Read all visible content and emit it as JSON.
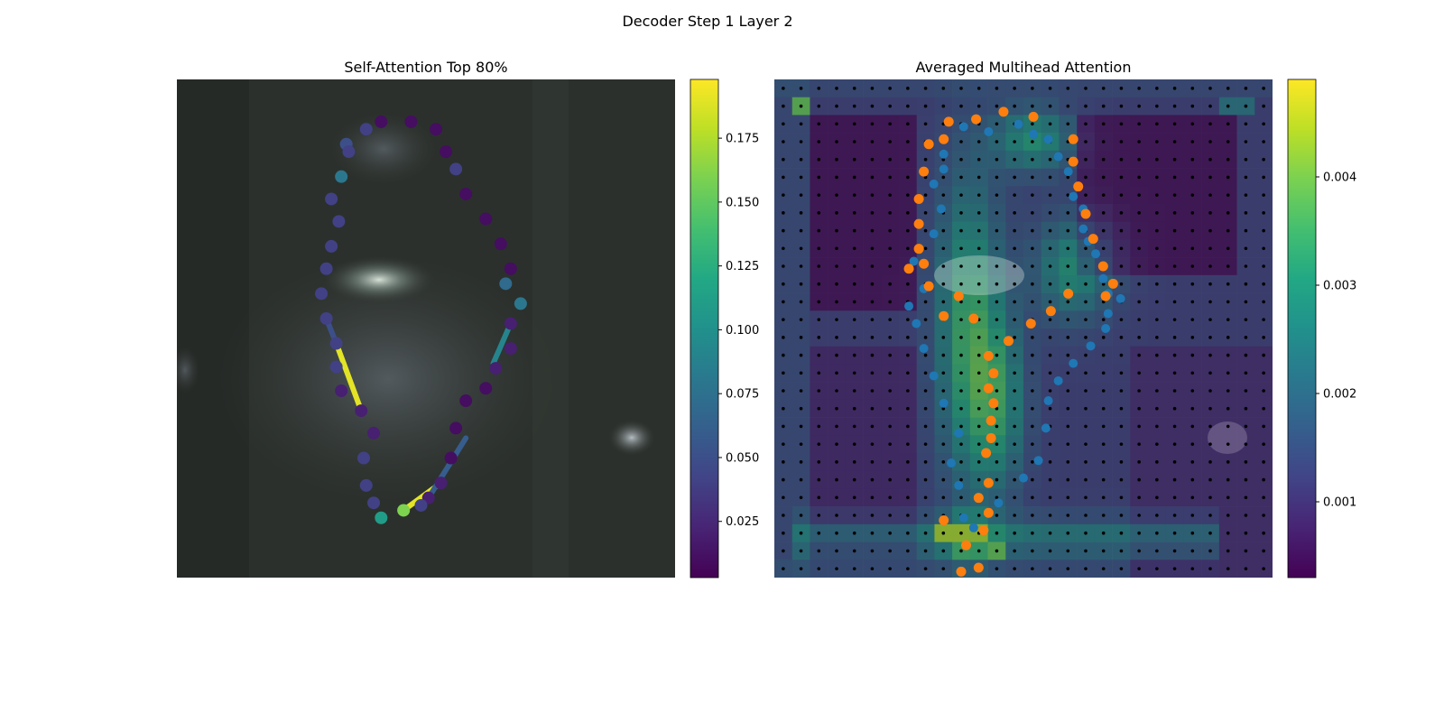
{
  "figure": {
    "title": "Decoder Step 1 Layer 2"
  },
  "chart_data": [
    {
      "type": "scatter",
      "title": "Self-Attention Top 80%",
      "description_of_marks": "contour points colored by attention weight, with highlighted attention links",
      "colormap": "viridis",
      "colorbar": {
        "ticks": [
          0.025,
          0.05,
          0.075,
          0.1,
          0.125,
          0.15,
          0.175
        ],
        "tick_labels": [
          "0.025",
          "0.050",
          "0.075",
          "0.100",
          "0.125",
          "0.150",
          "0.175"
        ],
        "range": [
          0.003,
          0.198
        ]
      },
      "points": [
        [
          0.41,
          0.085,
          0.01
        ],
        [
          0.47,
          0.085,
          0.01
        ],
        [
          0.38,
          0.1,
          0.04
        ],
        [
          0.34,
          0.13,
          0.05
        ],
        [
          0.52,
          0.1,
          0.01
        ],
        [
          0.54,
          0.145,
          0.01
        ],
        [
          0.56,
          0.18,
          0.04
        ],
        [
          0.58,
          0.23,
          0.01
        ],
        [
          0.62,
          0.28,
          0.01
        ],
        [
          0.65,
          0.33,
          0.01
        ],
        [
          0.67,
          0.38,
          0.01
        ],
        [
          0.66,
          0.41,
          0.07
        ],
        [
          0.69,
          0.45,
          0.08
        ],
        [
          0.67,
          0.49,
          0.02
        ],
        [
          0.67,
          0.54,
          0.02
        ],
        [
          0.64,
          0.58,
          0.02
        ],
        [
          0.62,
          0.62,
          0.01
        ],
        [
          0.58,
          0.645,
          0.01
        ],
        [
          0.56,
          0.7,
          0.01
        ],
        [
          0.55,
          0.76,
          0.01
        ],
        [
          0.53,
          0.81,
          0.02
        ],
        [
          0.505,
          0.84,
          0.02
        ],
        [
          0.49,
          0.855,
          0.04
        ],
        [
          0.455,
          0.865,
          0.16
        ],
        [
          0.41,
          0.88,
          0.11
        ],
        [
          0.395,
          0.85,
          0.04
        ],
        [
          0.38,
          0.815,
          0.04
        ],
        [
          0.375,
          0.76,
          0.04
        ],
        [
          0.395,
          0.71,
          0.02
        ],
        [
          0.37,
          0.665,
          0.02
        ],
        [
          0.33,
          0.625,
          0.02
        ],
        [
          0.32,
          0.577,
          0.04
        ],
        [
          0.32,
          0.53,
          0.04
        ],
        [
          0.3,
          0.48,
          0.04
        ],
        [
          0.29,
          0.43,
          0.04
        ],
        [
          0.3,
          0.38,
          0.04
        ],
        [
          0.31,
          0.335,
          0.04
        ],
        [
          0.325,
          0.285,
          0.04
        ],
        [
          0.31,
          0.24,
          0.04
        ],
        [
          0.33,
          0.195,
          0.08
        ],
        [
          0.345,
          0.145,
          0.04
        ]
      ],
      "links": [
        [
          [
            0.32,
            0.53
          ],
          [
            0.37,
            0.665
          ],
          0.19
        ],
        [
          [
            0.455,
            0.865
          ],
          [
            0.53,
            0.81
          ],
          0.19
        ],
        [
          [
            0.67,
            0.49
          ],
          [
            0.635,
            0.57
          ],
          0.09
        ],
        [
          [
            0.505,
            0.84
          ],
          [
            0.58,
            0.72
          ],
          0.06
        ],
        [
          [
            0.3,
            0.48
          ],
          [
            0.32,
            0.53
          ],
          0.05
        ]
      ],
      "link_legend": ""
    },
    {
      "type": "heatmap",
      "title": "Averaged Multihead Attention",
      "colormap": "viridis",
      "colorbar": {
        "ticks": [
          0.001,
          0.002,
          0.003,
          0.004
        ],
        "tick_labels": [
          "0.001",
          "0.002",
          "0.003",
          "0.004"
        ],
        "range": [
          0.0003,
          0.0049
        ]
      },
      "grid": {
        "rows": 28,
        "cols": 28
      },
      "orange_points": [
        [
          0.405,
          0.08
        ],
        [
          0.46,
          0.065
        ],
        [
          0.52,
          0.075
        ],
        [
          0.35,
          0.085
        ],
        [
          0.31,
          0.13
        ],
        [
          0.3,
          0.185
        ],
        [
          0.29,
          0.24
        ],
        [
          0.29,
          0.29
        ],
        [
          0.34,
          0.12
        ],
        [
          0.6,
          0.12
        ],
        [
          0.6,
          0.165
        ],
        [
          0.61,
          0.215
        ],
        [
          0.625,
          0.27
        ],
        [
          0.64,
          0.32
        ],
        [
          0.66,
          0.375
        ],
        [
          0.68,
          0.41
        ],
        [
          0.665,
          0.435
        ],
        [
          0.59,
          0.43
        ],
        [
          0.555,
          0.465
        ],
        [
          0.515,
          0.49
        ],
        [
          0.47,
          0.525
        ],
        [
          0.43,
          0.555
        ],
        [
          0.4,
          0.48
        ],
        [
          0.37,
          0.435
        ],
        [
          0.31,
          0.415
        ],
        [
          0.3,
          0.37
        ],
        [
          0.29,
          0.34
        ],
        [
          0.27,
          0.38
        ],
        [
          0.34,
          0.475
        ],
        [
          0.44,
          0.59
        ],
        [
          0.43,
          0.62
        ],
        [
          0.44,
          0.65
        ],
        [
          0.435,
          0.685
        ],
        [
          0.435,
          0.72
        ],
        [
          0.425,
          0.75
        ],
        [
          0.43,
          0.81
        ],
        [
          0.41,
          0.84
        ],
        [
          0.43,
          0.87
        ],
        [
          0.42,
          0.905
        ],
        [
          0.385,
          0.935
        ],
        [
          0.41,
          0.98
        ],
        [
          0.375,
          1.0
        ],
        [
          0.34,
          0.885
        ]
      ],
      "blue_points": [
        [
          0.38,
          0.095
        ],
        [
          0.43,
          0.105
        ],
        [
          0.49,
          0.09
        ],
        [
          0.52,
          0.11
        ],
        [
          0.55,
          0.12
        ],
        [
          0.57,
          0.155
        ],
        [
          0.59,
          0.185
        ],
        [
          0.6,
          0.235
        ],
        [
          0.62,
          0.26
        ],
        [
          0.62,
          0.3
        ],
        [
          0.63,
          0.325
        ],
        [
          0.645,
          0.35
        ],
        [
          0.66,
          0.4
        ],
        [
          0.67,
          0.43
        ],
        [
          0.695,
          0.44
        ],
        [
          0.67,
          0.47
        ],
        [
          0.665,
          0.5
        ],
        [
          0.635,
          0.535
        ],
        [
          0.6,
          0.57
        ],
        [
          0.57,
          0.605
        ],
        [
          0.55,
          0.645
        ],
        [
          0.545,
          0.7
        ],
        [
          0.53,
          0.765
        ],
        [
          0.5,
          0.8
        ],
        [
          0.45,
          0.85
        ],
        [
          0.4,
          0.9
        ],
        [
          0.38,
          0.88
        ],
        [
          0.37,
          0.815
        ],
        [
          0.355,
          0.77
        ],
        [
          0.37,
          0.71
        ],
        [
          0.34,
          0.65
        ],
        [
          0.32,
          0.595
        ],
        [
          0.3,
          0.54
        ],
        [
          0.285,
          0.49
        ],
        [
          0.27,
          0.455
        ],
        [
          0.3,
          0.42
        ],
        [
          0.28,
          0.365
        ],
        [
          0.32,
          0.31
        ],
        [
          0.335,
          0.26
        ],
        [
          0.32,
          0.21
        ],
        [
          0.34,
          0.18
        ],
        [
          0.34,
          0.15
        ]
      ]
    }
  ]
}
